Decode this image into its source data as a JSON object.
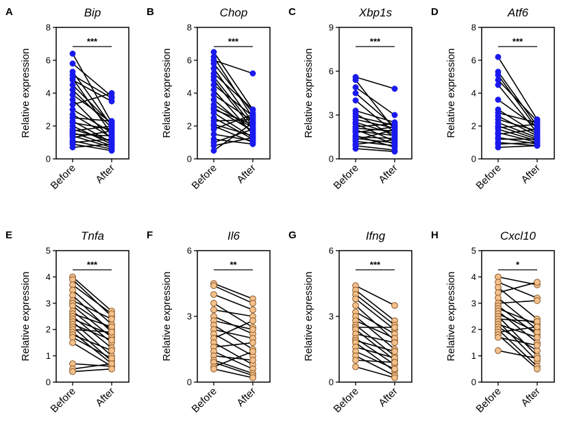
{
  "figure": {
    "ylabel": "Relative expression",
    "group_labels": [
      "Before",
      "After"
    ],
    "colors": {
      "blue": "#1a1aee",
      "orange": "#f5c08a",
      "orange_edge": "#8a5a2a",
      "line": "#000000"
    }
  },
  "chart_data": [
    {
      "id": "A",
      "gene": "Bip",
      "type": "scatter",
      "ylim": [
        0,
        8
      ],
      "yticks": [
        0,
        2,
        4,
        6,
        8
      ],
      "sig": "***",
      "style": "blue",
      "before": [
        6.4,
        5.8,
        5.3,
        5.1,
        4.9,
        4.8,
        4.5,
        4.2,
        3.9,
        3.6,
        3.3,
        3.0,
        2.7,
        2.5,
        2.3,
        2.2,
        2.0,
        1.8,
        1.7,
        1.6,
        1.5,
        1.4,
        1.3,
        1.1,
        1.0,
        0.9,
        0.7
      ],
      "after": [
        2.2,
        3.8,
        2.0,
        3.7,
        1.5,
        3.5,
        2.1,
        1.9,
        2.2,
        1.2,
        4.0,
        1.6,
        1.3,
        2.3,
        1.0,
        1.8,
        0.9,
        1.1,
        2.0,
        0.8,
        1.4,
        0.7,
        1.7,
        0.6,
        1.2,
        0.5,
        0.9
      ]
    },
    {
      "id": "B",
      "gene": "Chop",
      "type": "scatter",
      "ylim": [
        0,
        8
      ],
      "yticks": [
        0,
        2,
        4,
        6,
        8
      ],
      "sig": "***",
      "style": "blue",
      "before": [
        6.5,
        6.2,
        6.0,
        5.8,
        5.5,
        5.2,
        5.0,
        4.8,
        4.5,
        4.2,
        3.9,
        3.6,
        3.3,
        3.1,
        3.0,
        2.8,
        2.5,
        2.3,
        2.1,
        2.0,
        1.8,
        1.5,
        1.2,
        1.0,
        0.8,
        0.5
      ],
      "after": [
        3.0,
        2.5,
        5.2,
        2.8,
        2.2,
        3.0,
        2.0,
        1.8,
        2.6,
        1.5,
        2.3,
        1.6,
        1.9,
        1.7,
        2.1,
        1.3,
        1.2,
        2.4,
        1.4,
        1.0,
        2.7,
        1.1,
        0.9,
        1.8,
        1.3,
        2.2
      ]
    },
    {
      "id": "C",
      "gene": "Xbp1s",
      "type": "scatter",
      "ylim": [
        0,
        9
      ],
      "yticks": [
        0,
        3,
        6,
        9
      ],
      "sig": "***",
      "style": "blue",
      "before": [
        5.6,
        5.4,
        4.9,
        4.5,
        4.0,
        3.3,
        3.1,
        2.9,
        2.7,
        2.5,
        2.4,
        2.2,
        2.1,
        2.0,
        1.9,
        1.8,
        1.6,
        1.5,
        1.4,
        1.3,
        1.2,
        1.0,
        0.9,
        0.7
      ],
      "after": [
        4.8,
        2.0,
        3.0,
        2.2,
        1.8,
        2.5,
        1.5,
        2.3,
        2.1,
        1.7,
        1.2,
        2.4,
        1.9,
        1.0,
        1.6,
        2.2,
        0.8,
        1.4,
        1.1,
        2.0,
        0.9,
        1.3,
        0.6,
        0.5
      ]
    },
    {
      "id": "D",
      "gene": "Atf6",
      "type": "scatter",
      "ylim": [
        0,
        8
      ],
      "yticks": [
        0,
        2,
        4,
        6,
        8
      ],
      "sig": "***",
      "style": "blue",
      "before": [
        6.2,
        5.3,
        5.1,
        4.8,
        4.5,
        3.6,
        3.0,
        2.8,
        2.6,
        2.4,
        2.2,
        2.0,
        1.9,
        1.8,
        1.6,
        1.5,
        1.3,
        1.2,
        1.0,
        0.9,
        0.7
      ],
      "after": [
        2.4,
        2.0,
        1.8,
        2.3,
        1.6,
        1.9,
        1.5,
        2.2,
        1.4,
        1.7,
        1.3,
        1.2,
        2.1,
        1.1,
        1.0,
        1.8,
        0.9,
        1.2,
        0.8,
        1.0,
        0.8
      ]
    },
    {
      "id": "E",
      "gene": "Tnfa",
      "type": "scatter",
      "ylim": [
        0,
        5
      ],
      "yticks": [
        0,
        1,
        2,
        3,
        4,
        5
      ],
      "sig": "***",
      "style": "orange",
      "before": [
        4.0,
        3.9,
        3.7,
        3.5,
        3.3,
        3.1,
        3.0,
        2.9,
        2.7,
        2.6,
        2.5,
        2.4,
        2.3,
        2.2,
        2.1,
        2.0,
        1.9,
        1.8,
        1.7,
        1.5,
        0.7,
        0.5,
        0.4
      ],
      "after": [
        2.7,
        2.5,
        2.6,
        2.2,
        1.9,
        2.4,
        2.0,
        1.7,
        1.5,
        2.1,
        1.3,
        1.8,
        1.0,
        1.6,
        0.8,
        1.9,
        0.7,
        1.2,
        0.9,
        0.6,
        0.6,
        0.7,
        0.5
      ]
    },
    {
      "id": "F",
      "gene": "Il6",
      "type": "scatter",
      "ylim": [
        0,
        6
      ],
      "yticks": [
        0,
        3,
        6
      ],
      "sig": "**",
      "style": "orange",
      "before": [
        4.5,
        4.4,
        4.0,
        3.6,
        3.3,
        3.0,
        2.8,
        2.6,
        2.4,
        2.2,
        2.0,
        1.8,
        1.6,
        1.4,
        1.2,
        1.0,
        0.9,
        0.7,
        0.6
      ],
      "after": [
        3.8,
        3.6,
        3.3,
        2.5,
        3.0,
        2.2,
        2.4,
        1.5,
        2.0,
        1.2,
        2.8,
        0.8,
        1.8,
        0.6,
        1.0,
        0.4,
        0.3,
        1.4,
        0.2
      ]
    },
    {
      "id": "G",
      "gene": "Ifng",
      "type": "scatter",
      "ylim": [
        0,
        6
      ],
      "yticks": [
        0,
        3,
        6
      ],
      "sig": "***",
      "style": "orange",
      "before": [
        4.4,
        4.2,
        4.0,
        3.8,
        3.5,
        3.2,
        3.0,
        2.8,
        2.6,
        2.5,
        2.4,
        2.2,
        2.0,
        1.9,
        1.8,
        1.6,
        1.4,
        1.2,
        1.0,
        0.7
      ],
      "after": [
        3.5,
        2.8,
        2.6,
        2.4,
        1.9,
        2.2,
        1.5,
        2.0,
        1.2,
        2.5,
        1.0,
        1.8,
        0.8,
        1.4,
        0.5,
        1.1,
        0.6,
        0.3,
        0.9,
        0.2
      ]
    },
    {
      "id": "H",
      "gene": "Cxcl10",
      "type": "scatter",
      "ylim": [
        0,
        5
      ],
      "yticks": [
        0,
        1,
        2,
        3,
        4,
        5
      ],
      "sig": "*",
      "style": "orange",
      "before": [
        4.0,
        3.8,
        3.6,
        3.4,
        3.2,
        3.0,
        2.9,
        2.8,
        2.7,
        2.6,
        2.5,
        2.4,
        2.3,
        2.2,
        2.1,
        2.0,
        1.9,
        1.8,
        1.7,
        1.2
      ],
      "after": [
        3.7,
        3.2,
        2.4,
        3.8,
        2.0,
        3.1,
        1.8,
        2.2,
        1.5,
        1.9,
        1.0,
        2.3,
        0.8,
        1.7,
        1.2,
        0.6,
        2.1,
        0.5,
        1.4,
        0.9
      ]
    }
  ]
}
